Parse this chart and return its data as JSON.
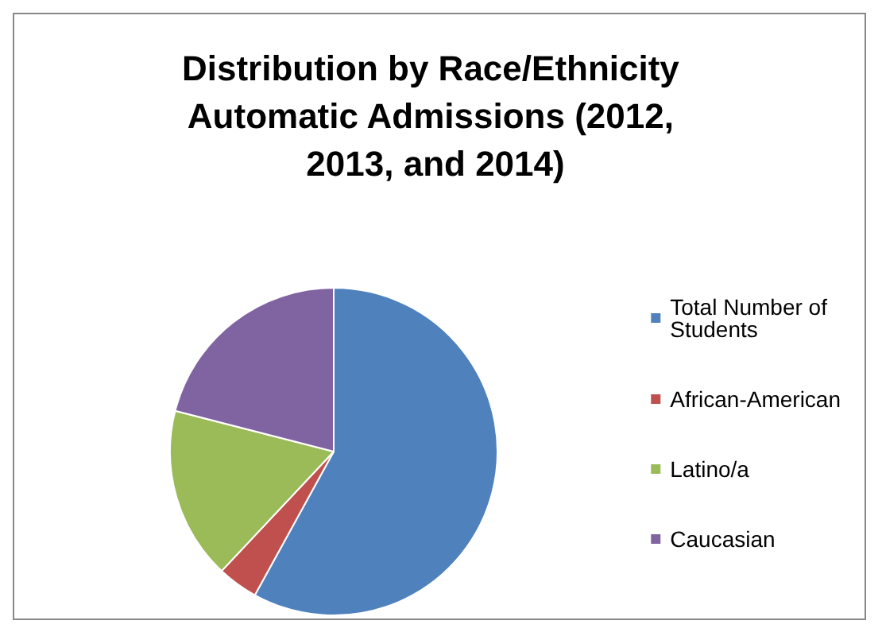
{
  "chart_data": {
    "type": "pie",
    "title": "Distribution by Race/Ethnicity Automatic Admissions (2012, 2013, and 2014)",
    "categories": [
      "Total Number of Students",
      "African-American",
      "Latino/a",
      "Caucasian"
    ],
    "values": [
      58,
      4,
      17,
      21
    ],
    "colors": [
      "#4f81bd",
      "#c0504d",
      "#9bbb59",
      "#8064a2"
    ],
    "legend": "right"
  }
}
